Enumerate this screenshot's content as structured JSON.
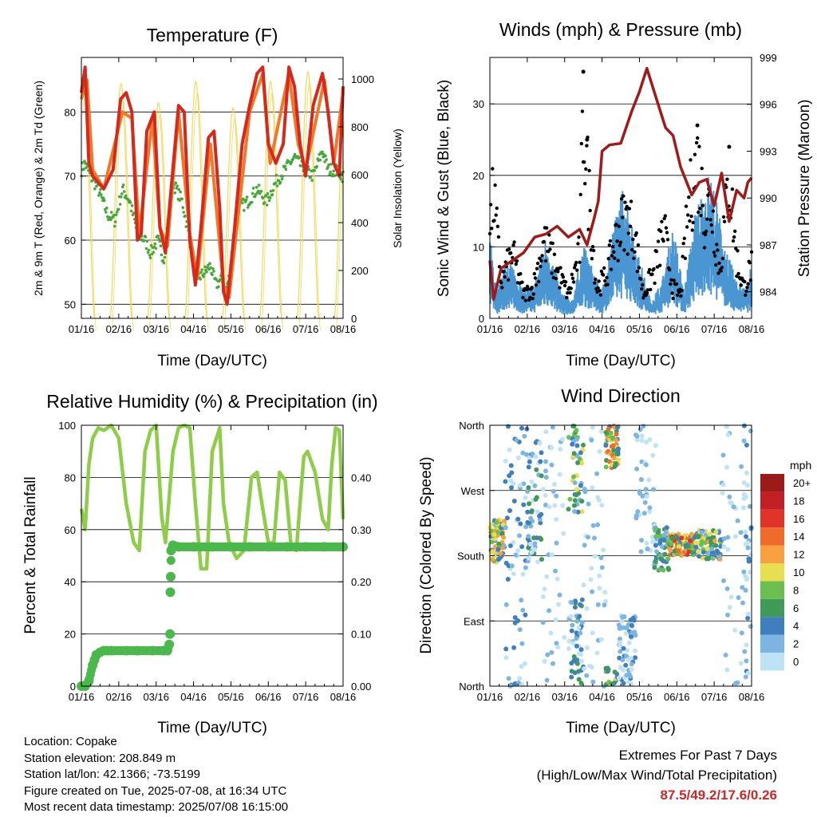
{
  "panels": {
    "temperature": {
      "title": "Temperature (F)",
      "ylabel": "2m & 9m T (Red, Orange) & 2m Td (Green)",
      "y2label": "Solar Insolation (Yellow)",
      "xlabel": "Time (Day/UTC)"
    },
    "winds": {
      "title": "Winds (mph) & Pressure (mb)",
      "ylabel": "Sonic Wind & Gust (Blue, Black)",
      "y2label": "Station Pressure (Maroon)",
      "xlabel": "Time (Day/UTC)"
    },
    "humidity": {
      "title": "Relative Humidity (%) & Precipitation (in)",
      "ylabel": "Percent & Total Rainfall",
      "xlabel": "Time (Day/UTC)"
    },
    "direction": {
      "title": "Wind Direction",
      "ylabel": "Direction (Colored By Speed)",
      "xlabel": "Time (Day/UTC)",
      "colorbar_title": "mph",
      "colorbar_labels": [
        "20+",
        "18",
        "16",
        "14",
        "12",
        "10",
        "8",
        "6",
        "4",
        "2",
        "0"
      ]
    }
  },
  "info": {
    "location": "Location: Copake",
    "elevation": "Station elevation: 208.849 m",
    "latlon": "Station lat/lon: 42.1366; -73.5199",
    "created": "Figure created on Tue, 2025-07-08, at 16:34 UTC",
    "recent": "Most recent data timestamp: 2025/07/08 16:15:00"
  },
  "extremes": {
    "line1": "Extremes For Past 7 Days",
    "line2": "(High/Low/Max Wind/Total Precipitation)",
    "values": "87.5/49.2/17.6/0.26"
  },
  "colors": {
    "temp_2m": "#d42a1e",
    "temp_9m": "#f07828",
    "dewpoint": "#45a83a",
    "solar": "#f2d85a",
    "wind": "#4a96d2",
    "gust": "#000000",
    "pressure": "#a01a1a",
    "rh": "#8ecc4a",
    "rain": "#4ab84a",
    "extremes": "#c8282a"
  },
  "chart_data": [
    {
      "type": "line",
      "panel": "temperature",
      "x_ticks": [
        "01/16",
        "02/16",
        "03/16",
        "04/16",
        "05/16",
        "06/16",
        "07/16",
        "08/16"
      ],
      "xlim": [
        0,
        7
      ],
      "y_ticks": [
        50,
        60,
        70,
        80
      ],
      "ylim": [
        47.8,
        88.5
      ],
      "y2_ticks": [
        0,
        200,
        400,
        600,
        800,
        1000
      ],
      "y2lim": [
        0,
        1090
      ],
      "grid": true,
      "series": [
        {
          "axis": "left",
          "style": "line",
          "x": [
            0,
            0.1,
            0.2,
            0.3,
            0.45,
            0.6,
            0.85,
            1.05,
            1.2,
            1.35,
            1.5,
            1.6,
            1.75,
            1.95,
            2.1,
            2.25,
            2.4,
            2.6,
            2.75,
            2.9,
            3.05,
            3.2,
            3.4,
            3.55,
            3.7,
            3.8,
            3.9,
            4.1,
            4.3,
            4.5,
            4.7,
            4.85,
            5.0,
            5.2,
            5.4,
            5.55,
            5.7,
            5.85,
            6.0,
            6.2,
            6.45,
            6.6,
            6.75,
            6.9,
            7.0
          ],
          "y": [
            83,
            87,
            72,
            70,
            69,
            68,
            71,
            82,
            83,
            80,
            60,
            61,
            77,
            80,
            62,
            58,
            68,
            81,
            80,
            60,
            53,
            62,
            76,
            77,
            65,
            52,
            50,
            62,
            75,
            81,
            86,
            87,
            75,
            72,
            75,
            87,
            84,
            75,
            70,
            81,
            86,
            80,
            72,
            70,
            84
          ]
        },
        {
          "axis": "left",
          "style": "line",
          "x": [
            0,
            0.15,
            0.3,
            0.6,
            1.1,
            1.35,
            1.55,
            1.9,
            2.1,
            2.3,
            2.6,
            2.9,
            3.1,
            3.45,
            3.8,
            3.95,
            4.5,
            4.85,
            5.05,
            5.55,
            5.8,
            6.0,
            6.5,
            6.75,
            7.0
          ],
          "y": [
            82,
            85,
            71,
            68,
            80,
            79,
            61,
            79,
            62,
            59,
            80,
            61,
            54,
            75,
            53,
            51,
            80,
            86,
            72,
            86,
            75,
            71,
            85,
            72,
            83
          ]
        },
        {
          "axis": "left",
          "style": "points",
          "x": [
            0,
            0.1,
            0.25,
            0.45,
            0.7,
            0.9,
            1.1,
            1.3,
            1.5,
            1.7,
            1.85,
            2.05,
            2.2,
            2.45,
            2.7,
            2.9,
            3.1,
            3.3,
            3.45,
            3.6,
            3.75,
            3.85,
            4.0,
            4.2,
            4.45,
            4.7,
            4.95,
            5.2,
            5.45,
            5.7,
            5.95,
            6.2,
            6.45,
            6.6,
            6.8,
            7.0
          ],
          "y": [
            71,
            72,
            70,
            68,
            64,
            63,
            68,
            66,
            61,
            60,
            58,
            60,
            57,
            69,
            66,
            60,
            54,
            55,
            56,
            53,
            54,
            52,
            55,
            65,
            66,
            68,
            66,
            69,
            71,
            73,
            71,
            70,
            74,
            71,
            71,
            70
          ]
        },
        {
          "axis": "right",
          "style": "daily-curve",
          "day_peaks": [
            970,
            980,
            900,
            990,
            880,
            990,
            1030,
            1000
          ]
        }
      ]
    },
    {
      "type": "line",
      "panel": "winds",
      "x_ticks": [
        "01/16",
        "02/16",
        "03/16",
        "04/16",
        "05/16",
        "06/16",
        "07/16",
        "08/16"
      ],
      "xlim": [
        0,
        7
      ],
      "y_ticks": [
        0,
        10,
        20,
        30
      ],
      "ylim": [
        0,
        36.5
      ],
      "y2_ticks": [
        984,
        987,
        990,
        993,
        996,
        999
      ],
      "y2lim": [
        982.3,
        999
      ],
      "grid": true,
      "series": [
        {
          "axis": "left",
          "style": "band",
          "name_key": "wind",
          "x": [
            0,
            0.2,
            0.5,
            0.9,
            1.2,
            1.5,
            1.9,
            2.2,
            2.5,
            2.8,
            3.0,
            3.3,
            3.6,
            3.9,
            4.3,
            4.6,
            4.9,
            5.2,
            5.5,
            5.9,
            6.3,
            6.6,
            6.9,
            7.0
          ],
          "y": [
            9,
            3,
            7,
            3,
            4,
            9,
            3,
            2,
            8,
            5,
            3,
            10,
            15,
            8,
            2,
            4,
            10,
            3,
            12,
            16,
            8,
            4,
            4,
            6
          ]
        },
        {
          "axis": "left",
          "style": "points",
          "name_key": "gust",
          "x": [
            0,
            0.1,
            0.3,
            0.6,
            0.9,
            1.15,
            1.45,
            1.8,
            2.1,
            2.4,
            2.5,
            2.6,
            2.85,
            3.1,
            3.35,
            3.6,
            3.85,
            4.1,
            4.4,
            4.65,
            4.9,
            5.1,
            5.3,
            5.55,
            5.75,
            5.9,
            6.15,
            6.4,
            6.6,
            6.8,
            7.0
          ],
          "y": [
            15,
            21,
            6,
            11,
            4,
            5,
            13,
            8,
            4,
            11,
            34.5,
            25,
            5,
            7,
            13,
            17,
            15,
            4,
            8,
            15,
            5,
            4,
            18,
            27,
            17,
            20,
            8,
            24,
            10,
            5,
            9
          ]
        },
        {
          "axis": "right",
          "style": "line",
          "name_key": "pressure",
          "x": [
            0,
            0.1,
            0.3,
            0.6,
            0.9,
            1.2,
            1.5,
            1.8,
            2.1,
            2.4,
            2.6,
            2.8,
            2.9,
            3.0,
            3.2,
            3.5,
            3.8,
            4.0,
            4.2,
            4.5,
            4.7,
            4.9,
            5.1,
            5.4,
            5.6,
            5.8,
            6.0,
            6.2,
            6.4,
            6.6,
            6.8,
            6.9,
            7.0
          ],
          "y": [
            986,
            983.5,
            985.5,
            986,
            986.5,
            987.5,
            987.7,
            988.2,
            987.5,
            988,
            987,
            988.8,
            989.8,
            993,
            993.4,
            993.5,
            995.6,
            996.8,
            998.3,
            996,
            994.5,
            994,
            992,
            990.2,
            991,
            991.2,
            989.5,
            991.6,
            988.5,
            990.5,
            990,
            991,
            991.3
          ]
        }
      ]
    },
    {
      "type": "line",
      "panel": "humidity",
      "x_ticks": [
        "01/16",
        "02/16",
        "03/16",
        "04/16",
        "05/16",
        "06/16",
        "07/16",
        "08/16"
      ],
      "xlim": [
        0,
        7
      ],
      "y_ticks": [
        0,
        20,
        40,
        60,
        80,
        100
      ],
      "ylim": [
        0,
        100
      ],
      "y2_ticks": [
        "0.00",
        "0.10",
        "0.20",
        "0.30",
        "0.40"
      ],
      "y2lim": [
        0,
        0.5
      ],
      "grid": true,
      "series": [
        {
          "axis": "left",
          "style": "line",
          "name_key": "rh",
          "x": [
            0,
            0.1,
            0.2,
            0.3,
            0.45,
            0.6,
            0.8,
            1.0,
            1.2,
            1.4,
            1.55,
            1.7,
            1.85,
            2.0,
            2.15,
            2.25,
            2.45,
            2.6,
            2.75,
            2.9,
            3.05,
            3.2,
            3.35,
            3.5,
            3.7,
            3.8,
            3.95,
            4.15,
            4.35,
            4.55,
            4.7,
            4.85,
            5.0,
            5.15,
            5.3,
            5.45,
            5.6,
            5.75,
            5.85,
            5.95,
            6.05,
            6.25,
            6.45,
            6.6,
            6.7,
            6.8,
            6.9,
            7.0
          ],
          "y": [
            68,
            60,
            85,
            95,
            99,
            98,
            100,
            95,
            70,
            55,
            52,
            90,
            98,
            100,
            65,
            55,
            90,
            99,
            100,
            99,
            70,
            45,
            45,
            90,
            99,
            70,
            55,
            49,
            52,
            80,
            82,
            68,
            55,
            55,
            82,
            79,
            55,
            52,
            70,
            88,
            90,
            82,
            64,
            60,
            85,
            99,
            98,
            64
          ]
        },
        {
          "axis": "right",
          "style": "points",
          "name_key": "rain",
          "x": [
            0,
            0.1,
            0.2,
            0.3,
            0.35,
            0.4,
            0.5,
            0.6,
            0.7,
            0.8,
            1.2,
            1.5,
            1.9,
            2.2,
            2.3,
            2.35,
            2.37,
            2.38,
            2.39,
            2.4,
            2.45,
            2.6,
            3.0,
            3.5,
            4.0,
            4.5,
            5.0,
            5.5,
            6.0,
            6.5,
            7.0
          ],
          "y": [
            0.0,
            0.0,
            0.01,
            0.04,
            0.05,
            0.06,
            0.065,
            0.068,
            0.068,
            0.068,
            0.068,
            0.068,
            0.068,
            0.068,
            0.068,
            0.08,
            0.1,
            0.18,
            0.21,
            0.26,
            0.27,
            0.267,
            0.267,
            0.267,
            0.267,
            0.267,
            0.267,
            0.267,
            0.267,
            0.267,
            0.267
          ]
        }
      ]
    },
    {
      "type": "scatter",
      "panel": "direction",
      "x_ticks": [
        "01/16",
        "02/16",
        "03/16",
        "04/16",
        "05/16",
        "06/16",
        "07/16",
        "08/16"
      ],
      "xlim": [
        0,
        7
      ],
      "y_ticks": [
        "North",
        "East",
        "South",
        "West",
        "North"
      ],
      "ylim": [
        0,
        360
      ],
      "grid": true,
      "colorscale": {
        "levels": [
          20,
          18,
          16,
          14,
          12,
          10,
          8,
          6,
          4,
          2,
          0
        ],
        "colors": [
          "#9b1b1b",
          "#c21f26",
          "#e0342a",
          "#f06a2a",
          "#f9a140",
          "#e8de52",
          "#6cbf4f",
          "#3f9a58",
          "#3f7fbf",
          "#7db5e2",
          "#bfe3f5"
        ]
      },
      "clusters": [
        {
          "x": [
            0.0,
            0.4
          ],
          "dir": [
            170,
            230
          ],
          "speed": [
            2,
            14
          ],
          "n": 70
        },
        {
          "x": [
            0.4,
            1.0
          ],
          "dir": [
            0,
            360
          ],
          "speed": [
            0,
            6
          ],
          "n": 70
        },
        {
          "x": [
            1.0,
            1.4
          ],
          "dir": [
            170,
            340
          ],
          "speed": [
            0,
            8
          ],
          "n": 60
        },
        {
          "x": [
            1.4,
            2.0
          ],
          "dir": [
            0,
            360
          ],
          "speed": [
            0,
            4
          ],
          "n": 45
        },
        {
          "x": [
            2.1,
            2.5
          ],
          "dir": [
            0,
            120
          ],
          "speed": [
            0,
            8
          ],
          "n": 50
        },
        {
          "x": [
            2.1,
            2.5
          ],
          "dir": [
            240,
            360
          ],
          "speed": [
            2,
            12
          ],
          "n": 45
        },
        {
          "x": [
            2.5,
            3.1
          ],
          "dir": [
            0,
            360
          ],
          "speed": [
            0,
            4
          ],
          "n": 45
        },
        {
          "x": [
            3.1,
            3.45
          ],
          "dir": [
            300,
            360
          ],
          "speed": [
            4,
            16
          ],
          "n": 55
        },
        {
          "x": [
            3.1,
            3.45
          ],
          "dir": [
            0,
            25
          ],
          "speed": [
            4,
            12
          ],
          "n": 15
        },
        {
          "x": [
            3.45,
            3.9
          ],
          "dir": [
            0,
            100
          ],
          "speed": [
            0,
            6
          ],
          "n": 60
        },
        {
          "x": [
            3.9,
            4.5
          ],
          "dir": [
            180,
            360
          ],
          "speed": [
            0,
            4
          ],
          "n": 45
        },
        {
          "x": [
            4.4,
            4.8
          ],
          "dir": [
            160,
            220
          ],
          "speed": [
            2,
            10
          ],
          "n": 60
        },
        {
          "x": [
            4.8,
            5.5
          ],
          "dir": [
            180,
            210
          ],
          "speed": [
            4,
            18
          ],
          "n": 100
        },
        {
          "x": [
            5.5,
            6.2
          ],
          "dir": [
            175,
            215
          ],
          "speed": [
            2,
            14
          ],
          "n": 90
        },
        {
          "x": [
            6.2,
            6.8
          ],
          "dir": [
            0,
            360
          ],
          "speed": [
            0,
            4
          ],
          "n": 40
        },
        {
          "x": [
            6.8,
            7.0
          ],
          "dir": [
            0,
            360
          ],
          "speed": [
            0,
            6
          ],
          "n": 35
        }
      ]
    }
  ]
}
